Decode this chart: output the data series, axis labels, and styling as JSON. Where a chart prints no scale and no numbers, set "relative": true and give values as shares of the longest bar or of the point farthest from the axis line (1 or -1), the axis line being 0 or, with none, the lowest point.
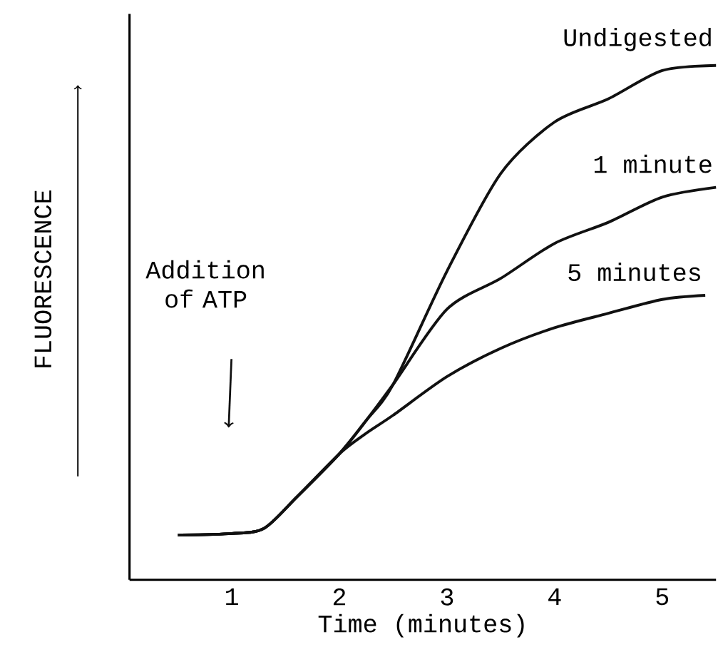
{
  "chart_data": {
    "type": "line",
    "relative": true,
    "xlabel": "Time (minutes)",
    "ylabel": "FLUORESCENCE",
    "xlim": [
      0.05,
      5.5
    ],
    "xticks": [
      1,
      2,
      3,
      4,
      5
    ],
    "grid": false,
    "marker": "none",
    "line_style": "solid",
    "color": "#111111",
    "annotations": [
      "Addition of ATP"
    ],
    "series": [
      {
        "name": "Undigested",
        "x": [
          0.5,
          1.0,
          1.3,
          1.6,
          2.0,
          2.25,
          2.5,
          3.0,
          3.5,
          4.0,
          4.5,
          5.0,
          5.5
        ],
        "values": [
          0.087,
          0.09,
          0.1,
          0.16,
          0.245,
          0.31,
          0.38,
          0.6,
          0.79,
          0.89,
          0.935,
          0.99,
          1.0
        ]
      },
      {
        "name": "1 minute",
        "x": [
          0.5,
          1.0,
          1.3,
          1.6,
          2.0,
          2.25,
          2.5,
          3.0,
          3.5,
          4.0,
          4.5,
          5.0,
          5.5
        ],
        "values": [
          0.087,
          0.09,
          0.1,
          0.16,
          0.245,
          0.31,
          0.38,
          0.526,
          0.586,
          0.654,
          0.695,
          0.744,
          0.763
        ]
      },
      {
        "name": "5 minutes",
        "x": [
          0.5,
          1.0,
          1.3,
          1.6,
          2.0,
          2.25,
          2.5,
          3.0,
          3.5,
          4.0,
          4.5,
          5.0,
          5.4
        ],
        "values": [
          0.087,
          0.09,
          0.1,
          0.16,
          0.245,
          0.285,
          0.32,
          0.395,
          0.45,
          0.49,
          0.518,
          0.545,
          0.553
        ]
      }
    ]
  }
}
